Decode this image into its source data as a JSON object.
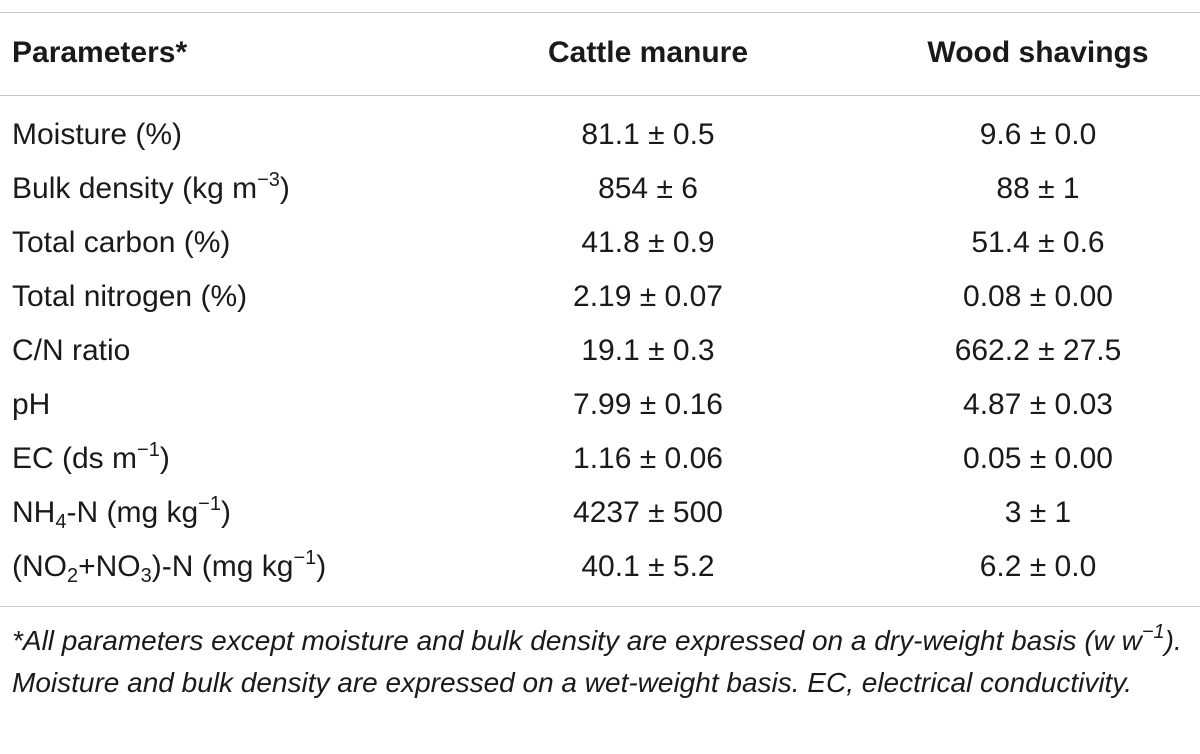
{
  "table": {
    "headers": [
      "Parameters*",
      "Cattle manure",
      "Wood shavings"
    ],
    "rows": [
      {
        "param": "Moisture (%)",
        "cattle": "81.1 ± 0.5",
        "wood": "9.6 ± 0.0"
      },
      {
        "param_pre": "Bulk density (kg m",
        "param_sup": "−3",
        "param_post": ")",
        "cattle": "854 ± 6",
        "wood": "88 ± 1"
      },
      {
        "param": "Total carbon (%)",
        "cattle": "41.8 ± 0.9",
        "wood": "51.4 ± 0.6"
      },
      {
        "param": "Total nitrogen (%)",
        "cattle": "2.19 ± 0.07",
        "wood": "0.08 ± 0.00"
      },
      {
        "param": "C/N ratio",
        "cattle": "19.1 ± 0.3",
        "wood": "662.2 ± 27.5"
      },
      {
        "param": "pH",
        "cattle": "7.99 ± 0.16",
        "wood": "4.87 ± 0.03"
      },
      {
        "param_pre": "EC (ds m",
        "param_sup": "−1",
        "param_post": ")",
        "cattle": "1.16 ± 0.06",
        "wood": "0.05 ± 0.00"
      },
      {
        "param_pre": "NH",
        "param_sub": "4",
        "param_mid": "-N (mg kg",
        "param_sup": "−1",
        "param_post": ")",
        "cattle": "4237 ± 500",
        "wood": "3 ± 1"
      },
      {
        "param_a": "(NO",
        "param_sub1": "2",
        "param_b": "+NO",
        "param_sub2": "3",
        "param_c": ")-N (mg kg",
        "param_sup": "−1",
        "param_post": ")",
        "cattle": "40.1 ± 5.2",
        "wood": "6.2 ± 0.0"
      }
    ]
  },
  "footnote": {
    "pre": "*All parameters except moisture and bulk density are expressed on a dry-weight basis (w w",
    "sup": "−1",
    "post": "). Moisture and bulk density are expressed on a wet-weight basis. EC, electrical conductivity."
  }
}
